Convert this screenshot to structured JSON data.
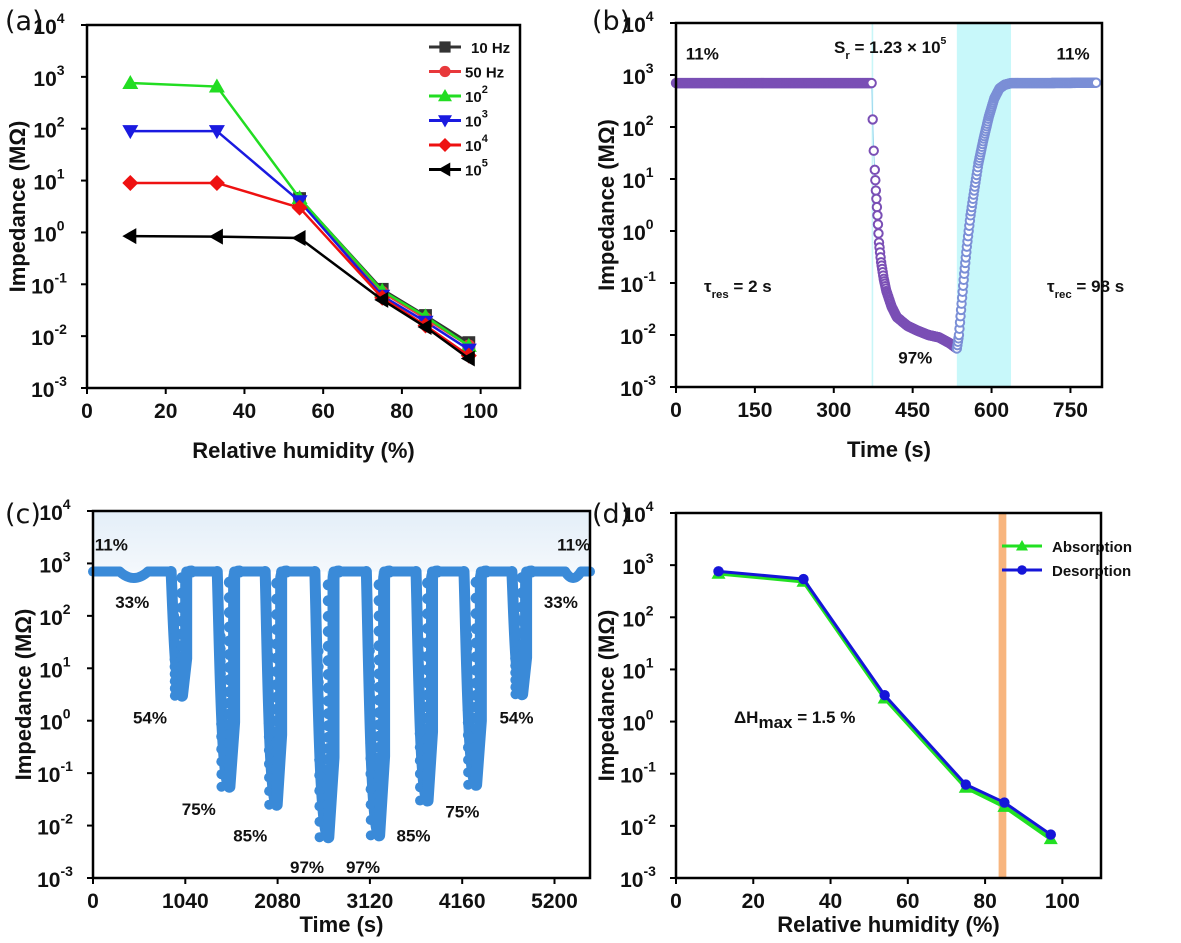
{
  "chart_data": [
    {
      "id": "a",
      "panel_label": "(a)",
      "type": "line",
      "xlabel": "Relative humidity (%)",
      "ylabel": "Impedance (MΩ)",
      "xlim": [
        0,
        110
      ],
      "ylim_log10": [
        -3,
        4
      ],
      "yscale": "log",
      "xticks": [
        0,
        20,
        40,
        60,
        80,
        100
      ],
      "yticks_exp": [
        -3,
        -2,
        -1,
        0,
        1,
        2,
        3,
        4
      ],
      "legend_position": "top-right",
      "x": [
        11,
        33,
        54,
        75,
        86,
        97
      ],
      "series": [
        {
          "name": "10 Hz",
          "base": "10 Hz",
          "sup": "",
          "color": "#333333",
          "marker": "square",
          "values": [
            null,
            null,
            4.5,
            0.08,
            0.025,
            0.0075
          ]
        },
        {
          "name": "50 Hz",
          "base": "50 Hz",
          "sup": "",
          "color": "#e8383b",
          "marker": "circle",
          "values": [
            null,
            null,
            4.0,
            0.07,
            0.022,
            0.0065
          ]
        },
        {
          "name": "10^2 Hz",
          "base": "10",
          "sup": "2",
          "color": "#22dd22",
          "marker": "triangle-up",
          "values": [
            760,
            650,
            4.6,
            0.075,
            0.024,
            0.0065
          ]
        },
        {
          "name": "10^3 Hz",
          "base": "10",
          "sup": "3",
          "color": "#1a1ae0",
          "marker": "triangle-down",
          "values": [
            90,
            90,
            4.0,
            0.06,
            0.019,
            0.0055
          ]
        },
        {
          "name": "10^4 Hz",
          "base": "10",
          "sup": "4",
          "color": "#ee1111",
          "marker": "diamond",
          "values": [
            9,
            9,
            3.0,
            0.055,
            0.016,
            0.0042
          ]
        },
        {
          "name": "10^5 Hz",
          "base": "10",
          "sup": "5",
          "color": "#000000",
          "marker": "triangle-left",
          "values": [
            0.85,
            0.83,
            0.78,
            0.05,
            0.015,
            0.0037
          ]
        }
      ]
    },
    {
      "id": "b",
      "panel_label": "(b)",
      "type": "scatter",
      "xlabel": "Time (s)",
      "ylabel": "Impedance (MΩ)",
      "xlim": [
        0,
        810
      ],
      "ylim_log10": [
        -3,
        4
      ],
      "yscale": "log",
      "xticks": [
        0,
        150,
        300,
        450,
        600,
        750
      ],
      "yticks_exp": [
        -3,
        -2,
        -1,
        0,
        1,
        2,
        3,
        4
      ],
      "color": "#7a4fb5",
      "recovery_color": "#7b8fd6",
      "shaded_regions": [
        {
          "x0": 372,
          "x1": 375,
          "color": "#c8f6f8"
        },
        {
          "x0": 534,
          "x1": 637,
          "color": "#c8f8fa"
        }
      ],
      "series": [
        {
          "name": "response",
          "x": [
            0,
            100,
            200,
            300,
            372,
            374,
            376,
            378,
            380,
            383,
            386,
            390,
            395,
            400,
            410,
            420,
            440,
            460,
            480,
            500,
            520,
            534
          ],
          "values": [
            700,
            700,
            700,
            700,
            700,
            140,
            35,
            15,
            6,
            2,
            0.6,
            0.25,
            0.12,
            0.07,
            0.035,
            0.022,
            0.015,
            0.012,
            0.01,
            0.009,
            0.007,
            0.0055
          ]
        },
        {
          "name": "recovery",
          "x": [
            534,
            538,
            543,
            548,
            553,
            560,
            567,
            575,
            585,
            595,
            605,
            615,
            625,
            637,
            700,
            800
          ],
          "values": [
            0.0055,
            0.01,
            0.04,
            0.15,
            0.5,
            2,
            6,
            20,
            60,
            160,
            350,
            550,
            650,
            700,
            700,
            710
          ]
        }
      ],
      "annotations": [
        {
          "text": "11%",
          "x": 50,
          "y_log10": 3.3
        },
        {
          "text": "11%",
          "x": 755,
          "y_log10": 3.3
        },
        {
          "text": "97%",
          "x": 455,
          "y_log10": -2.55
        },
        {
          "text_main": "S",
          "text_sub": "r",
          "text_rest": " = 1.23 × 10",
          "text_sup": "5"
        },
        {
          "text_main": "τ",
          "text_sub": "res",
          "text_rest": " = 2 s"
        },
        {
          "text_main": "τ",
          "text_sub": "rec",
          "text_rest": " = 98 s"
        }
      ]
    },
    {
      "id": "c",
      "panel_label": "(c)",
      "type": "scatter",
      "xlabel": "Time (s)",
      "ylabel": "Impedance (MΩ)",
      "xlim": [
        0,
        5600
      ],
      "ylim_log10": [
        -3,
        4
      ],
      "yscale": "log",
      "xticks": [
        0,
        1040,
        2080,
        3120,
        4160,
        5200
      ],
      "yticks_exp": [
        -3,
        -2,
        -1,
        0,
        1,
        2,
        3,
        4
      ],
      "color": "#3a8ad8",
      "baseline": 700,
      "cycles": [
        {
          "label": "33%",
          "start": 300,
          "end": 620,
          "min": 500
        },
        {
          "label": "54%",
          "start": 880,
          "end": 1050,
          "min": 3
        },
        {
          "label": "75%",
          "start": 1400,
          "end": 1590,
          "min": 0.055
        },
        {
          "label": "85%",
          "start": 1940,
          "end": 2120,
          "min": 0.025
        },
        {
          "label": "97%",
          "start": 2500,
          "end": 2710,
          "min": 0.006
        },
        {
          "label": "97%",
          "start": 3080,
          "end": 3280,
          "min": 0.0065
        },
        {
          "label": "85%",
          "start": 3640,
          "end": 3820,
          "min": 0.03
        },
        {
          "label": "75%",
          "start": 4180,
          "end": 4370,
          "min": 0.06
        },
        {
          "label": "54%",
          "start": 4720,
          "end": 4880,
          "min": 3.2
        },
        {
          "label": "33%",
          "start": 5320,
          "end": 5500,
          "min": 500
        }
      ],
      "annotations": [
        {
          "text": "11%",
          "x": 20,
          "y_log10": 3.25
        },
        {
          "text": "33%",
          "x": 250,
          "y_log10": 2.15
        },
        {
          "text": "54%",
          "x": 450,
          "y_log10": -0.05
        },
        {
          "text": "75%",
          "x": 1000,
          "y_log10": -1.8
        },
        {
          "text": "85%",
          "x": 1580,
          "y_log10": -2.3
        },
        {
          "text": "97%",
          "x": 2220,
          "y_log10": -2.9
        },
        {
          "text": "97%",
          "x": 2850,
          "y_log10": -2.9
        },
        {
          "text": "85%",
          "x": 3420,
          "y_log10": -2.3
        },
        {
          "text": "75%",
          "x": 3970,
          "y_log10": -1.85
        },
        {
          "text": "54%",
          "x": 4580,
          "y_log10": -0.05
        },
        {
          "text": "11%",
          "x": 5230,
          "y_log10": 3.25
        },
        {
          "text": "33%",
          "x": 5080,
          "y_log10": 2.15
        }
      ]
    },
    {
      "id": "d",
      "panel_label": "(d)",
      "type": "line",
      "xlabel": "Relative humidity (%)",
      "ylabel": "Impedance (MΩ)",
      "xlim": [
        0,
        110
      ],
      "ylim_log10": [
        -3,
        4
      ],
      "yscale": "log",
      "xticks": [
        0,
        20,
        40,
        60,
        80,
        100
      ],
      "yticks_exp": [
        -3,
        -2,
        -1,
        0,
        1,
        2,
        3,
        4
      ],
      "legend_position": "top-right",
      "x": [
        11,
        33,
        54,
        75,
        85,
        97
      ],
      "series": [
        {
          "name": "Absorption",
          "color": "#22e022",
          "marker": "triangle-up",
          "values": [
            740,
            520,
            3.0,
            0.058,
            0.025,
            0.006
          ]
        },
        {
          "name": "Desorption",
          "color": "#1515d8",
          "marker": "circle",
          "values": [
            760,
            540,
            3.2,
            0.062,
            0.028,
            0.0068
          ]
        }
      ],
      "highlight_band": {
        "x0": 83.5,
        "x1": 85.5,
        "color": "#f8b57e"
      },
      "annotation": {
        "prefix": "ΔH",
        "sub": "max",
        "rest": " = 1.5 %",
        "color": "#f07f2a",
        "x": 15,
        "y_log10": 0.55
      }
    }
  ]
}
